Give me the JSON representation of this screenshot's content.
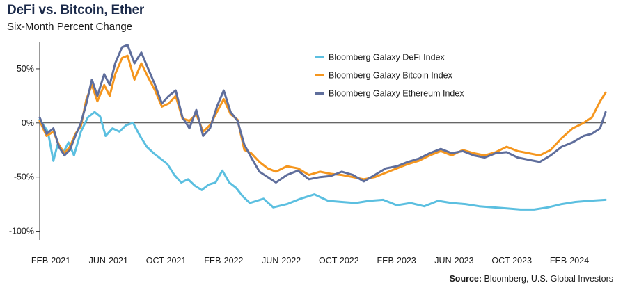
{
  "header": {
    "title": "DeFi vs. Bitcoin, Ether",
    "subtitle": "Six-Month Percent Change"
  },
  "footer": {
    "source_label": "Source:",
    "source_text": "Bloomberg, U.S. Global Investors"
  },
  "colors": {
    "defi": "#5bbfe0",
    "bitcoin": "#f5961e",
    "ethereum": "#5f6e9c",
    "axis": "#333333"
  },
  "chart_data": {
    "type": "line",
    "title": "DeFi vs. Bitcoin, Ether",
    "subtitle": "Six-Month Percent Change",
    "xlabel": "",
    "ylabel": "",
    "x_ticks": [
      "FEB-2021",
      "JUN-2021",
      "OCT-2021",
      "FEB-2022",
      "JUN-2022",
      "OCT-2022",
      "FEB-2023",
      "JUN-2023",
      "OCT-2023",
      "FEB-2024"
    ],
    "y_ticks": [
      "50%",
      "0%",
      "-50%",
      "-100%"
    ],
    "y_tick_values": [
      50,
      0,
      -50,
      -100
    ],
    "ylim": [
      -108,
      75
    ],
    "x_unit": "months since Jan-2021 (approx)",
    "xlim": [
      0,
      41.2
    ],
    "legend_position": "top-right",
    "grid": false,
    "series": [
      {
        "name": "Bloomberg Galaxy DeFi Index",
        "color": "#5bbfe0",
        "x": [
          0,
          0.6,
          1.0,
          1.3,
          1.7,
          2.1,
          2.5,
          3.0,
          3.5,
          4.0,
          4.4,
          4.8,
          5.3,
          5.8,
          6.3,
          6.8,
          7.3,
          7.8,
          8.3,
          8.8,
          9.3,
          9.8,
          10.3,
          10.8,
          11.3,
          11.8,
          12.3,
          12.8,
          13.3,
          13.8,
          14.3,
          14.8,
          15.3,
          15.8,
          16.3,
          17.0,
          18.0,
          19.0,
          20.0,
          21.0,
          22.0,
          23.0,
          24.0,
          25.0,
          26.0,
          27.0,
          28.0,
          29.0,
          30.0,
          31.0,
          32.0,
          33.0,
          34.0,
          35.0,
          36.0,
          37.0,
          38.0,
          39.0,
          40.0,
          41.2
        ],
        "y": [
          3,
          -8,
          -35,
          -20,
          -28,
          -18,
          -30,
          -8,
          5,
          10,
          6,
          -12,
          -5,
          -8,
          -2,
          0,
          -12,
          -22,
          -28,
          -33,
          -38,
          -48,
          -55,
          -52,
          -58,
          -62,
          -57,
          -55,
          -44,
          -55,
          -60,
          -68,
          -74,
          -72,
          -70,
          -78,
          -75,
          -70,
          -66,
          -72,
          -73,
          -74,
          -72,
          -71,
          -76,
          -74,
          -77,
          -72,
          -74,
          -75,
          -77,
          -78,
          -79,
          -80,
          -80,
          -78,
          -75,
          -73,
          -72,
          -71
        ]
      },
      {
        "name": "Bloomberg Galaxy Bitcoin Index",
        "color": "#f5961e",
        "x": [
          0,
          0.5,
          1.0,
          1.4,
          1.8,
          2.2,
          2.6,
          3.0,
          3.4,
          3.8,
          4.2,
          4.7,
          5.1,
          5.5,
          6.0,
          6.4,
          6.9,
          7.4,
          7.9,
          8.4,
          8.9,
          9.4,
          9.9,
          10.4,
          10.9,
          11.4,
          11.9,
          12.4,
          12.9,
          13.4,
          13.9,
          14.4,
          14.9,
          15.4,
          16.0,
          16.6,
          17.2,
          18.0,
          18.8,
          19.6,
          20.4,
          21.2,
          22.0,
          22.8,
          23.6,
          24.4,
          25.2,
          26.0,
          26.8,
          27.6,
          28.4,
          29.2,
          30.0,
          30.8,
          31.6,
          32.4,
          33.2,
          34.0,
          34.8,
          35.6,
          36.4,
          37.2,
          38.0,
          38.8,
          39.6,
          40.2,
          40.8,
          41.2
        ],
        "y": [
          2,
          -12,
          -8,
          -20,
          -28,
          -22,
          -10,
          -3,
          22,
          35,
          20,
          35,
          25,
          45,
          60,
          62,
          40,
          55,
          42,
          30,
          15,
          18,
          25,
          4,
          2,
          8,
          -8,
          -2,
          10,
          22,
          8,
          3,
          -25,
          -28,
          -36,
          -42,
          -45,
          -40,
          -42,
          -48,
          -45,
          -47,
          -48,
          -50,
          -52,
          -50,
          -46,
          -42,
          -38,
          -35,
          -30,
          -26,
          -30,
          -25,
          -28,
          -30,
          -27,
          -22,
          -26,
          -28,
          -30,
          -25,
          -14,
          -5,
          0,
          5,
          20,
          28
        ]
      },
      {
        "name": "Bloomberg Galaxy Ethereum Index",
        "color": "#5f6e9c",
        "x": [
          0,
          0.5,
          1.0,
          1.4,
          1.8,
          2.2,
          2.6,
          3.0,
          3.4,
          3.8,
          4.2,
          4.7,
          5.1,
          5.5,
          6.0,
          6.4,
          6.9,
          7.4,
          7.9,
          8.4,
          8.9,
          9.4,
          9.9,
          10.4,
          10.9,
          11.4,
          11.9,
          12.4,
          12.9,
          13.4,
          13.9,
          14.4,
          14.9,
          15.4,
          16.0,
          16.6,
          17.2,
          18.0,
          18.8,
          19.6,
          20.4,
          21.2,
          22.0,
          22.8,
          23.6,
          24.4,
          25.2,
          26.0,
          26.8,
          27.6,
          28.4,
          29.2,
          30.0,
          30.8,
          31.6,
          32.4,
          33.2,
          34.0,
          34.8,
          35.6,
          36.4,
          37.2,
          38.0,
          38.8,
          39.6,
          40.2,
          40.8,
          41.2
        ],
        "y": [
          5,
          -10,
          -5,
          -22,
          -30,
          -25,
          -12,
          0,
          18,
          40,
          25,
          45,
          35,
          55,
          70,
          72,
          55,
          65,
          50,
          35,
          18,
          25,
          30,
          5,
          -5,
          12,
          -12,
          -5,
          15,
          30,
          10,
          2,
          -20,
          -32,
          -45,
          -50,
          -55,
          -48,
          -44,
          -52,
          -50,
          -49,
          -45,
          -48,
          -54,
          -48,
          -42,
          -40,
          -36,
          -33,
          -28,
          -24,
          -28,
          -26,
          -30,
          -32,
          -28,
          -27,
          -32,
          -34,
          -36,
          -30,
          -22,
          -18,
          -12,
          -10,
          -5,
          10
        ]
      }
    ]
  }
}
